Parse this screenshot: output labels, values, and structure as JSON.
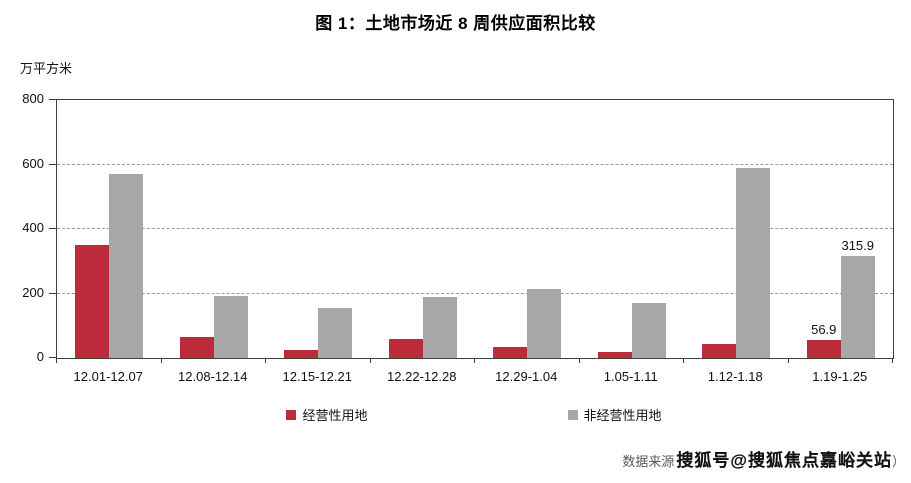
{
  "chart_data": {
    "type": "bar",
    "title": "图 1：土地市场近 8 周供应面积比较",
    "unit_label": "万平方米",
    "categories": [
      "12.01-12.07",
      "12.08-12.14",
      "12.15-12.21",
      "12.22-12.28",
      "12.29-1.04",
      "1.05-1.11",
      "1.12-1.18",
      "1.19-1.25"
    ],
    "series": [
      {
        "name": "经营性用地",
        "color": "#bd2b3b",
        "values": [
          350,
          65,
          25,
          60,
          35,
          20,
          45,
          56.9
        ],
        "data_labels": [
          "",
          "",
          "",
          "",
          "",
          "",
          "",
          "56.9"
        ]
      },
      {
        "name": "非经营性用地",
        "color": "#a7a7a7",
        "values": [
          570,
          192,
          155,
          188,
          215,
          170,
          588,
          315.9
        ],
        "data_labels": [
          "",
          "",
          "",
          "",
          "",
          "",
          "",
          "315.9"
        ]
      }
    ],
    "ylim": [
      0,
      800
    ],
    "yticks": [
      0,
      200,
      400,
      600,
      800
    ],
    "grid": "horizontal dashed at 200/400/600",
    "legend_position": "bottom"
  },
  "footer": {
    "source_prefix": "数据来源",
    "watermark": "搜狐号@搜狐焦点嘉峪关站",
    "source_suffix": "）"
  },
  "colors": {
    "axis": "#3f3f3f",
    "gridline": "#9b9b9b",
    "series1": "#bd2b3b",
    "series2": "#a7a7a7",
    "footer_text": "#595959"
  }
}
